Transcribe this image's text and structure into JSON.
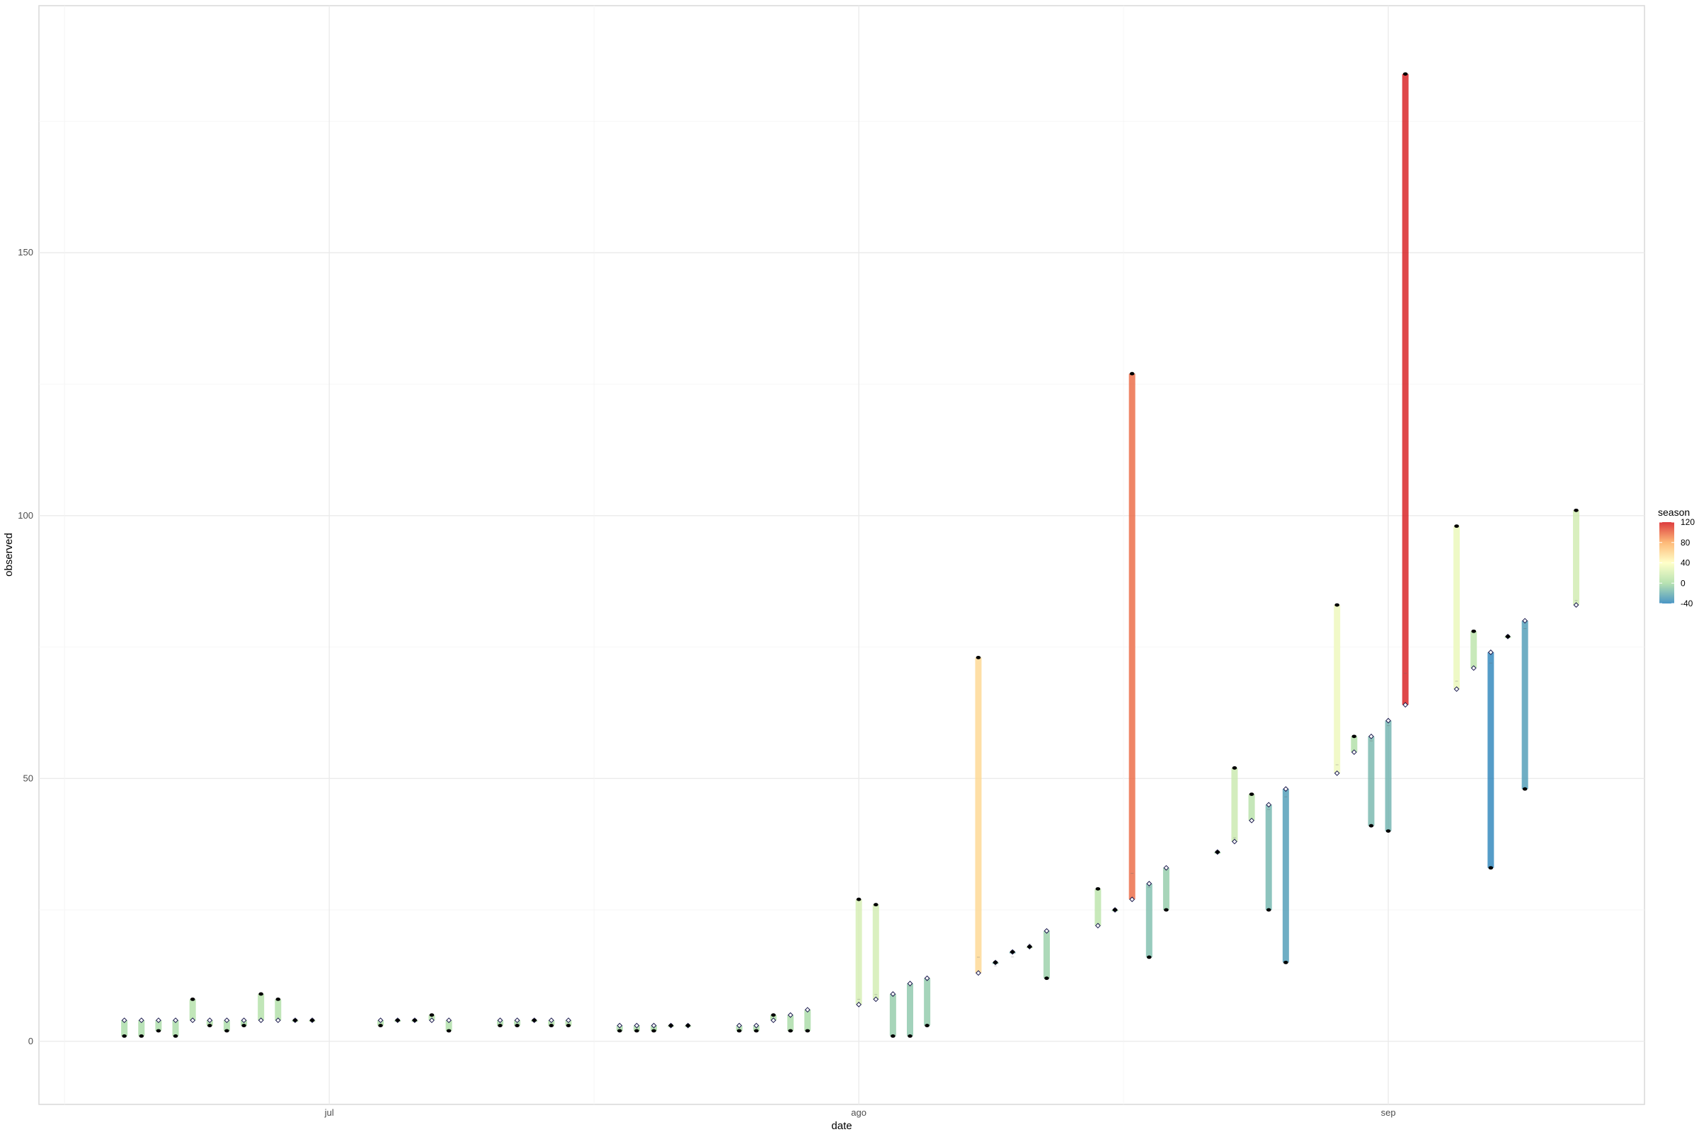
{
  "chart_data": {
    "type": "range-bar",
    "title": "",
    "xlabel": "date",
    "ylabel": "observed",
    "x_ticks": [
      {
        "date": "2020-07-01",
        "label": "jul"
      },
      {
        "date": "2020-08-01",
        "label": "ago"
      },
      {
        "date": "2020-09-01",
        "label": "sep"
      }
    ],
    "xlim": [
      "2020-06-14",
      "2020-09-16"
    ],
    "ylim": [
      -12,
      197
    ],
    "y_ticks": [
      0,
      50,
      100,
      150
    ],
    "grid": true,
    "legend": {
      "title": "season",
      "placement": "right",
      "breaks": [
        120,
        80,
        40,
        0,
        -40
      ],
      "range": [
        -40,
        120
      ],
      "colors": [
        "#2b83ba",
        "#abdda4",
        "#ffffbf",
        "#fdae61",
        "#d7191c"
      ]
    },
    "series": [
      {
        "date": "2020-06-19",
        "observed": 1,
        "trend": 4,
        "season": -1
      },
      {
        "date": "2020-06-20",
        "observed": 1,
        "trend": 4,
        "season": -1
      },
      {
        "date": "2020-06-21",
        "observed": 2,
        "trend": 4,
        "season": -1
      },
      {
        "date": "2020-06-22",
        "observed": 1,
        "trend": 4,
        "season": -1
      },
      {
        "date": "2020-06-23",
        "observed": 8,
        "trend": 4,
        "season": 3
      },
      {
        "date": "2020-06-24",
        "observed": 3,
        "trend": 4,
        "season": 0
      },
      {
        "date": "2020-06-25",
        "observed": 2,
        "trend": 4,
        "season": -1
      },
      {
        "date": "2020-06-26",
        "observed": 3,
        "trend": 4,
        "season": -1
      },
      {
        "date": "2020-06-27",
        "observed": 9,
        "trend": 4,
        "season": 3
      },
      {
        "date": "2020-06-28",
        "observed": 8,
        "trend": 4,
        "season": 2
      },
      {
        "date": "2020-06-29",
        "observed": 4,
        "trend": 4,
        "season": 1
      },
      {
        "date": "2020-06-30",
        "observed": 4,
        "trend": 4,
        "season": 8
      },
      {
        "date": "2020-07-04",
        "observed": 3,
        "trend": 4,
        "season": 0
      },
      {
        "date": "2020-07-05",
        "observed": 4,
        "trend": 4,
        "season": -1
      },
      {
        "date": "2020-07-06",
        "observed": 4,
        "trend": 4,
        "season": 0
      },
      {
        "date": "2020-07-07",
        "observed": 5,
        "trend": 4,
        "season": 3
      },
      {
        "date": "2020-07-08",
        "observed": 2,
        "trend": 4,
        "season": 0
      },
      {
        "date": "2020-07-11",
        "observed": 3,
        "trend": 4,
        "season": -1
      },
      {
        "date": "2020-07-12",
        "observed": 3,
        "trend": 4,
        "season": -1
      },
      {
        "date": "2020-07-13",
        "observed": 4,
        "trend": 4,
        "season": 0
      },
      {
        "date": "2020-07-14",
        "observed": 3,
        "trend": 4,
        "season": 1
      },
      {
        "date": "2020-07-15",
        "observed": 3,
        "trend": 4,
        "season": 3
      },
      {
        "date": "2020-07-18",
        "observed": 2,
        "trend": 3,
        "season": -1
      },
      {
        "date": "2020-07-19",
        "observed": 2,
        "trend": 3,
        "season": -1
      },
      {
        "date": "2020-07-20",
        "observed": 2,
        "trend": 3,
        "season": -1
      },
      {
        "date": "2020-07-21",
        "observed": 3,
        "trend": 3,
        "season": 2
      },
      {
        "date": "2020-07-22",
        "observed": 3,
        "trend": 3,
        "season": 3
      },
      {
        "date": "2020-07-25",
        "observed": 2,
        "trend": 3,
        "season": -1
      },
      {
        "date": "2020-07-26",
        "observed": 2,
        "trend": 3,
        "season": -1
      },
      {
        "date": "2020-07-27",
        "observed": 5,
        "trend": 4,
        "season": 1
      },
      {
        "date": "2020-07-28",
        "observed": 2,
        "trend": 5,
        "season": -1
      },
      {
        "date": "2020-07-29",
        "observed": 2,
        "trend": 6,
        "season": -1
      },
      {
        "date": "2020-08-01",
        "observed": 27,
        "trend": 7,
        "season": 20
      },
      {
        "date": "2020-08-02",
        "observed": 26,
        "trend": 8,
        "season": 18
      },
      {
        "date": "2020-08-03",
        "observed": 1,
        "trend": 9,
        "season": -8
      },
      {
        "date": "2020-08-04",
        "observed": 1,
        "trend": 11,
        "season": -10
      },
      {
        "date": "2020-08-05",
        "observed": 3,
        "trend": 12,
        "season": -9
      },
      {
        "date": "2020-08-08",
        "observed": 73,
        "trend": 13,
        "season": 60
      },
      {
        "date": "2020-08-09",
        "observed": 15,
        "trend": 15,
        "season": -13
      },
      {
        "date": "2020-08-10",
        "observed": 17,
        "trend": 17,
        "season": -19
      },
      {
        "date": "2020-08-11",
        "observed": 18,
        "trend": 18,
        "season": 10
      },
      {
        "date": "2020-08-12",
        "observed": 12,
        "trend": 21,
        "season": -6
      },
      {
        "date": "2020-08-15",
        "observed": 29,
        "trend": 22,
        "season": 7
      },
      {
        "date": "2020-08-16",
        "observed": 25,
        "trend": 25,
        "season": -4
      },
      {
        "date": "2020-08-17",
        "observed": 127,
        "trend": 27,
        "season": 99
      },
      {
        "date": "2020-08-18",
        "observed": 16,
        "trend": 30,
        "season": -14
      },
      {
        "date": "2020-08-19",
        "observed": 25,
        "trend": 33,
        "season": -8
      },
      {
        "date": "2020-08-22",
        "observed": 36,
        "trend": 36,
        "season": -2
      },
      {
        "date": "2020-08-23",
        "observed": 52,
        "trend": 38,
        "season": 14
      },
      {
        "date": "2020-08-24",
        "observed": 47,
        "trend": 42,
        "season": 5
      },
      {
        "date": "2020-08-25",
        "observed": 25,
        "trend": 45,
        "season": -18
      },
      {
        "date": "2020-08-26",
        "observed": 15,
        "trend": 48,
        "season": -30
      },
      {
        "date": "2020-08-29",
        "observed": 83,
        "trend": 51,
        "season": 32
      },
      {
        "date": "2020-08-30",
        "observed": 58,
        "trend": 55,
        "season": 2
      },
      {
        "date": "2020-08-31",
        "observed": 41,
        "trend": 58,
        "season": -17
      },
      {
        "date": "2020-09-01",
        "observed": 40,
        "trend": 61,
        "season": -19
      },
      {
        "date": "2020-09-02",
        "observed": 184,
        "trend": 64,
        "season": 120
      },
      {
        "date": "2020-09-05",
        "observed": 98,
        "trend": 67,
        "season": 30
      },
      {
        "date": "2020-09-06",
        "observed": 78,
        "trend": 71,
        "season": 7
      },
      {
        "date": "2020-09-07",
        "observed": 33,
        "trend": 74,
        "season": -41
      },
      {
        "date": "2020-09-08",
        "observed": 77,
        "trend": 77,
        "season": 6
      },
      {
        "date": "2020-09-09",
        "observed": 48,
        "trend": 80,
        "season": -30
      },
      {
        "date": "2020-09-12",
        "observed": 101,
        "trend": 83,
        "season": 17
      }
    ]
  }
}
